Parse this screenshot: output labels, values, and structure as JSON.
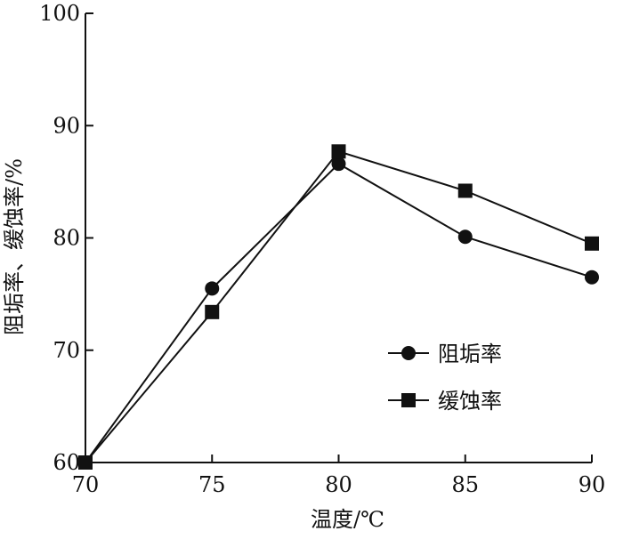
{
  "chart_data": {
    "type": "line",
    "title": "",
    "xlabel": "温度/℃",
    "ylabel": "阻垢率、缓蚀率/%",
    "xlim": [
      70,
      90
    ],
    "ylim": [
      60,
      100
    ],
    "x_ticks": [
      70,
      75,
      80,
      85,
      90
    ],
    "y_ticks": [
      60,
      70,
      80,
      90,
      100
    ],
    "grid": false,
    "legend_position": "right-center",
    "series": [
      {
        "name": "阻垢率",
        "marker": "circle",
        "color": "#111111",
        "x": [
          70,
          75,
          80,
          85,
          90
        ],
        "y": [
          60.0,
          75.5,
          86.6,
          80.1,
          76.5
        ]
      },
      {
        "name": "缓蚀率",
        "marker": "square",
        "color": "#111111",
        "x": [
          70,
          75,
          80,
          85,
          90
        ],
        "y": [
          60.0,
          73.4,
          87.7,
          84.2,
          79.5
        ]
      }
    ]
  }
}
